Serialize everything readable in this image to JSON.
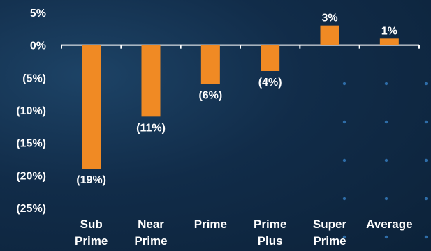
{
  "chart_data": {
    "type": "bar",
    "categories": [
      [
        "Sub",
        "Prime"
      ],
      [
        "Near",
        "Prime"
      ],
      [
        "Prime"
      ],
      [
        "Prime",
        "Plus"
      ],
      [
        "Super",
        "Prime"
      ],
      [
        "Average"
      ]
    ],
    "values": [
      -19,
      -11,
      -6,
      -4,
      3,
      1
    ],
    "data_labels": [
      "(19%)",
      "(11%)",
      "(6%)",
      "(4%)",
      "3%",
      "1%"
    ],
    "y_ticks": [
      5,
      0,
      -5,
      -10,
      -15,
      -20,
      -25
    ],
    "y_tick_labels": [
      "5%",
      "0%",
      "(5%)",
      "(10%)",
      "(15%)",
      "(20%)",
      "(25%)"
    ],
    "ylim": [
      -25,
      5
    ],
    "bar_color": "#f08a24",
    "axis_color": "#ffffff",
    "grid": false,
    "legend": "none"
  }
}
